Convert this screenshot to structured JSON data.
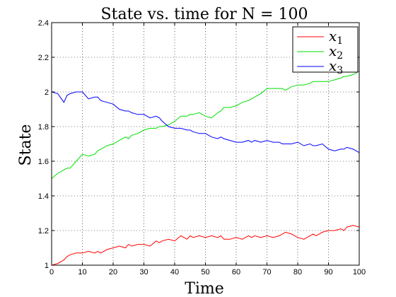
{
  "chart_data": {
    "type": "line",
    "title": "State vs. time for N = 100",
    "xlabel": "Time",
    "ylabel": "State",
    "xlim": [
      0,
      100
    ],
    "ylim": [
      1,
      2.4
    ],
    "xticks": [
      0,
      10,
      20,
      30,
      40,
      50,
      60,
      70,
      80,
      90,
      100
    ],
    "yticks": [
      1,
      1.2,
      1.4,
      1.6,
      1.8,
      2,
      2.2,
      2.4
    ],
    "grid": true,
    "legend_position": "top-right",
    "series": [
      {
        "name": "x",
        "subscript": "1",
        "color": "#ff0000",
        "x": [
          0,
          2,
          4,
          5,
          6,
          8,
          10,
          12,
          14,
          15,
          16,
          18,
          20,
          22,
          24,
          25,
          26,
          28,
          30,
          32,
          34,
          35,
          36,
          38,
          40,
          42,
          44,
          45,
          46,
          48,
          50,
          52,
          54,
          55,
          56,
          58,
          60,
          62,
          64,
          65,
          66,
          68,
          70,
          72,
          74,
          75,
          76,
          78,
          80,
          82,
          84,
          85,
          86,
          88,
          90,
          92,
          94,
          95,
          96,
          98,
          100
        ],
        "y": [
          1.0,
          1.01,
          1.03,
          1.05,
          1.06,
          1.07,
          1.07,
          1.08,
          1.07,
          1.08,
          1.07,
          1.09,
          1.1,
          1.11,
          1.1,
          1.12,
          1.11,
          1.12,
          1.12,
          1.11,
          1.14,
          1.13,
          1.14,
          1.15,
          1.14,
          1.17,
          1.15,
          1.17,
          1.16,
          1.17,
          1.16,
          1.17,
          1.16,
          1.17,
          1.15,
          1.15,
          1.16,
          1.15,
          1.17,
          1.16,
          1.17,
          1.16,
          1.17,
          1.16,
          1.17,
          1.18,
          1.19,
          1.18,
          1.16,
          1.15,
          1.17,
          1.18,
          1.17,
          1.19,
          1.2,
          1.2,
          1.21,
          1.2,
          1.22,
          1.23,
          1.22
        ]
      },
      {
        "name": "x",
        "subscript": "2",
        "color": "#00e000",
        "x": [
          0,
          2,
          4,
          5,
          6,
          8,
          10,
          12,
          14,
          15,
          16,
          18,
          20,
          22,
          24,
          25,
          26,
          28,
          30,
          32,
          34,
          35,
          36,
          38,
          40,
          42,
          44,
          45,
          46,
          48,
          50,
          52,
          54,
          55,
          56,
          58,
          60,
          62,
          64,
          65,
          66,
          68,
          70,
          72,
          74,
          75,
          76,
          78,
          80,
          82,
          84,
          85,
          86,
          88,
          90,
          92,
          94,
          95,
          96,
          98,
          100
        ],
        "y": [
          1.5,
          1.53,
          1.55,
          1.56,
          1.56,
          1.6,
          1.64,
          1.63,
          1.64,
          1.66,
          1.67,
          1.69,
          1.7,
          1.72,
          1.74,
          1.73,
          1.75,
          1.76,
          1.78,
          1.79,
          1.79,
          1.8,
          1.8,
          1.81,
          1.83,
          1.86,
          1.86,
          1.87,
          1.87,
          1.88,
          1.86,
          1.85,
          1.88,
          1.89,
          1.91,
          1.91,
          1.92,
          1.94,
          1.95,
          1.96,
          1.97,
          1.99,
          2.02,
          2.02,
          2.02,
          2.02,
          2.01,
          2.03,
          2.04,
          2.04,
          2.05,
          2.06,
          2.06,
          2.06,
          2.06,
          2.07,
          2.08,
          2.09,
          2.09,
          2.1,
          2.12
        ]
      },
      {
        "name": "x",
        "subscript": "3",
        "color": "#0000ff",
        "x": [
          0,
          2,
          4,
          5,
          6,
          8,
          10,
          12,
          14,
          15,
          16,
          18,
          20,
          22,
          24,
          25,
          26,
          28,
          30,
          32,
          34,
          35,
          36,
          38,
          40,
          42,
          44,
          45,
          46,
          48,
          50,
          52,
          54,
          55,
          56,
          58,
          60,
          62,
          64,
          65,
          66,
          68,
          70,
          72,
          74,
          75,
          76,
          78,
          80,
          82,
          84,
          85,
          86,
          88,
          90,
          92,
          94,
          95,
          96,
          98,
          100
        ],
        "y": [
          2.0,
          1.99,
          1.94,
          1.98,
          1.99,
          2.0,
          2.0,
          1.96,
          1.97,
          1.97,
          1.95,
          1.94,
          1.93,
          1.9,
          1.89,
          1.89,
          1.88,
          1.87,
          1.87,
          1.85,
          1.86,
          1.85,
          1.83,
          1.8,
          1.79,
          1.79,
          1.78,
          1.78,
          1.77,
          1.76,
          1.76,
          1.74,
          1.73,
          1.74,
          1.73,
          1.72,
          1.71,
          1.71,
          1.72,
          1.71,
          1.72,
          1.71,
          1.72,
          1.71,
          1.71,
          1.7,
          1.7,
          1.7,
          1.71,
          1.69,
          1.7,
          1.69,
          1.69,
          1.7,
          1.67,
          1.66,
          1.67,
          1.67,
          1.68,
          1.67,
          1.65
        ]
      }
    ]
  }
}
